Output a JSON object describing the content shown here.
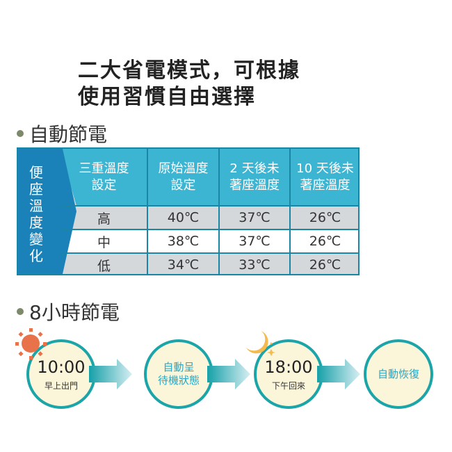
{
  "title": {
    "line1": "二大省電模式，可根據",
    "line2": "使用習慣自由選擇"
  },
  "section1": {
    "label": "自動節電"
  },
  "table": {
    "side_label": "便座溫度變化",
    "headers": [
      [
        "三重溫度",
        "設定"
      ],
      [
        "原始溫度",
        "設定"
      ],
      [
        "2 天後未",
        "著座溫度"
      ],
      [
        "10 天後未",
        "著座溫度"
      ]
    ],
    "rows": [
      [
        "高",
        "40℃",
        "37℃",
        "26℃"
      ],
      [
        "中",
        "38℃",
        "37℃",
        "26℃"
      ],
      [
        "低",
        "34℃",
        "33℃",
        "26℃"
      ]
    ]
  },
  "section2": {
    "label": "8小時節電"
  },
  "flow": [
    {
      "time": "10:00",
      "sub": "早上出門",
      "icon": "sun-icon"
    },
    {
      "line1": "自動呈",
      "line2": "待機狀態"
    },
    {
      "time": "18:00",
      "sub": "下午回來",
      "icon": "moon-icon"
    },
    {
      "line1": "自動恢復"
    }
  ],
  "colors": {
    "header": "#3cb5d3",
    "side": "#1a82b8",
    "circle_border": "#1ba5a8",
    "sun": "#e8734a",
    "moon": "#f3bb50"
  }
}
